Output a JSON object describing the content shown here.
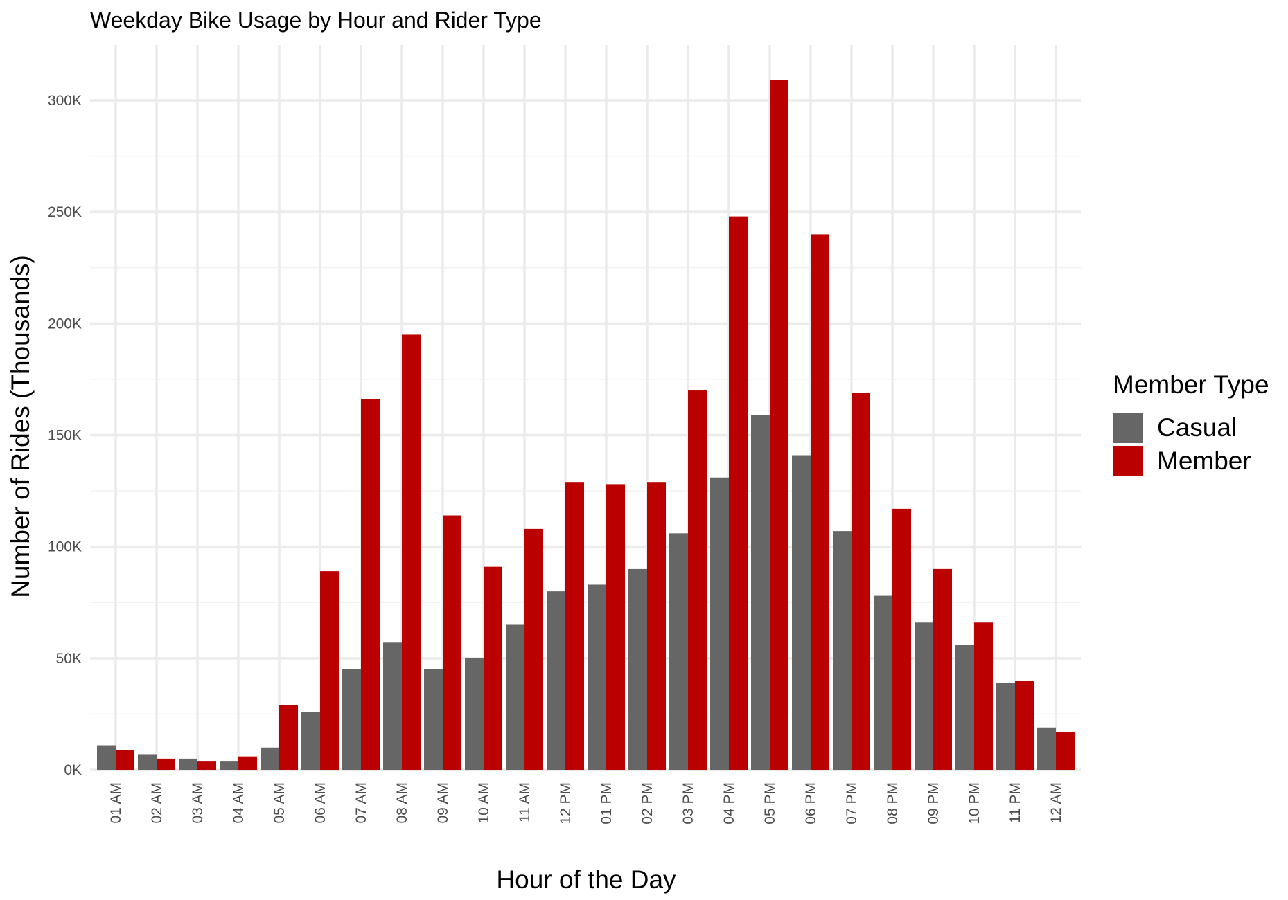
{
  "chart_data": {
    "type": "bar",
    "title": "Weekday Bike Usage by Hour and Rider Type",
    "xlabel": "Hour of the Day",
    "ylabel": "Number of Rides (Thousands)",
    "ylim": [
      0,
      325000
    ],
    "y_ticks": [
      0,
      50000,
      100000,
      150000,
      200000,
      250000,
      300000
    ],
    "y_tick_labels": [
      "0K",
      "50K",
      "100K",
      "150K",
      "200K",
      "250K",
      "300K"
    ],
    "grid": true,
    "legend": {
      "title": "Member Type",
      "position": "right"
    },
    "categories": [
      "01 AM",
      "02 AM",
      "03 AM",
      "04 AM",
      "05 AM",
      "06 AM",
      "07 AM",
      "08 AM",
      "09 AM",
      "10 AM",
      "11 AM",
      "12 PM",
      "01 PM",
      "02 PM",
      "03 PM",
      "04 PM",
      "05 PM",
      "06 PM",
      "07 PM",
      "08 PM",
      "09 PM",
      "10 PM",
      "11 PM",
      "12 AM"
    ],
    "series": [
      {
        "name": "Casual",
        "color": "#666666",
        "values": [
          11000,
          7000,
          5000,
          4000,
          10000,
          26000,
          45000,
          57000,
          45000,
          50000,
          65000,
          80000,
          83000,
          90000,
          106000,
          131000,
          159000,
          141000,
          107000,
          78000,
          66000,
          56000,
          39000,
          19000
        ]
      },
      {
        "name": "Member",
        "color": "#bb0000",
        "values": [
          9000,
          5000,
          4000,
          6000,
          29000,
          89000,
          166000,
          195000,
          114000,
          91000,
          108000,
          129000,
          128000,
          129000,
          170000,
          248000,
          309000,
          240000,
          169000,
          117000,
          90000,
          66000,
          40000,
          17000
        ]
      }
    ]
  }
}
